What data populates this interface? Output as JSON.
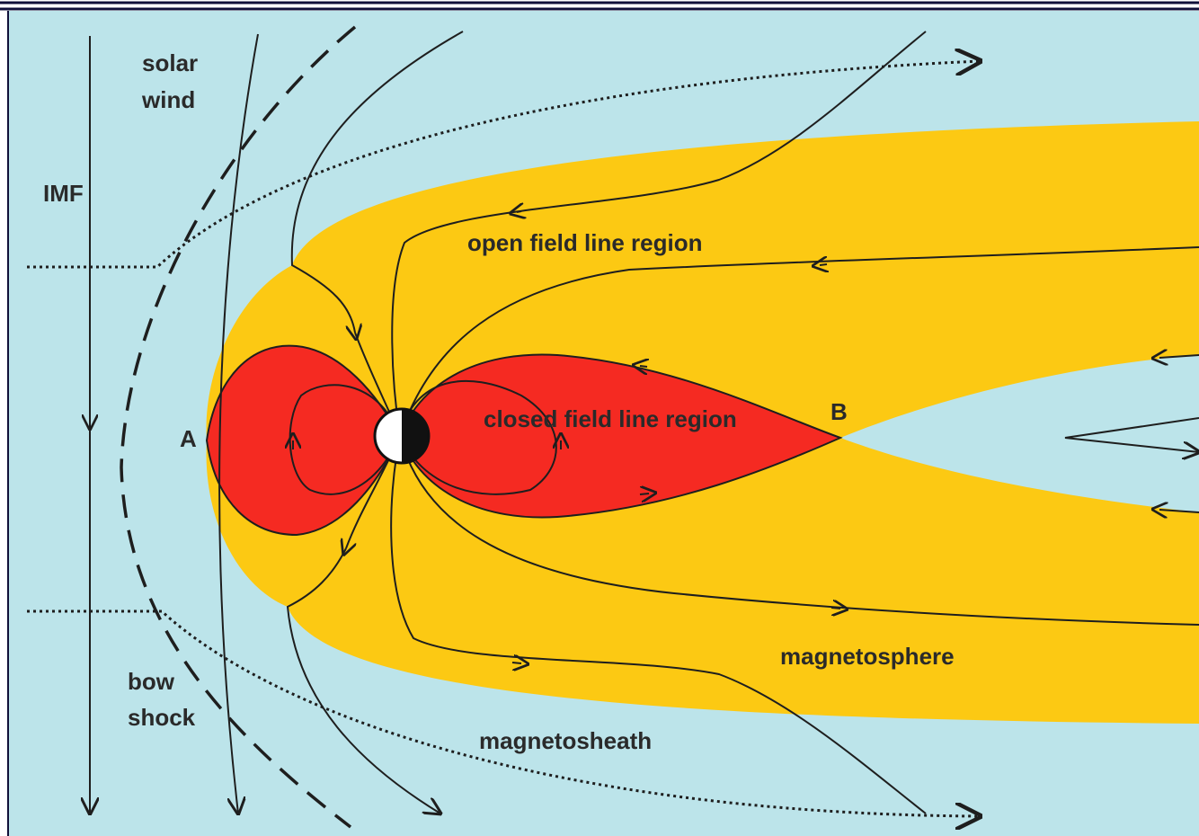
{
  "labels": {
    "solar_wind": [
      "solar",
      "wind"
    ],
    "imf": "IMF",
    "open_region": "open field line region",
    "closed_region": "closed field line region",
    "point_a": "A",
    "point_b": "B",
    "bow_shock": [
      "bow",
      "shock"
    ],
    "magnetosphere": "magnetosphere",
    "magnetosheath": "magnetosheath"
  }
}
